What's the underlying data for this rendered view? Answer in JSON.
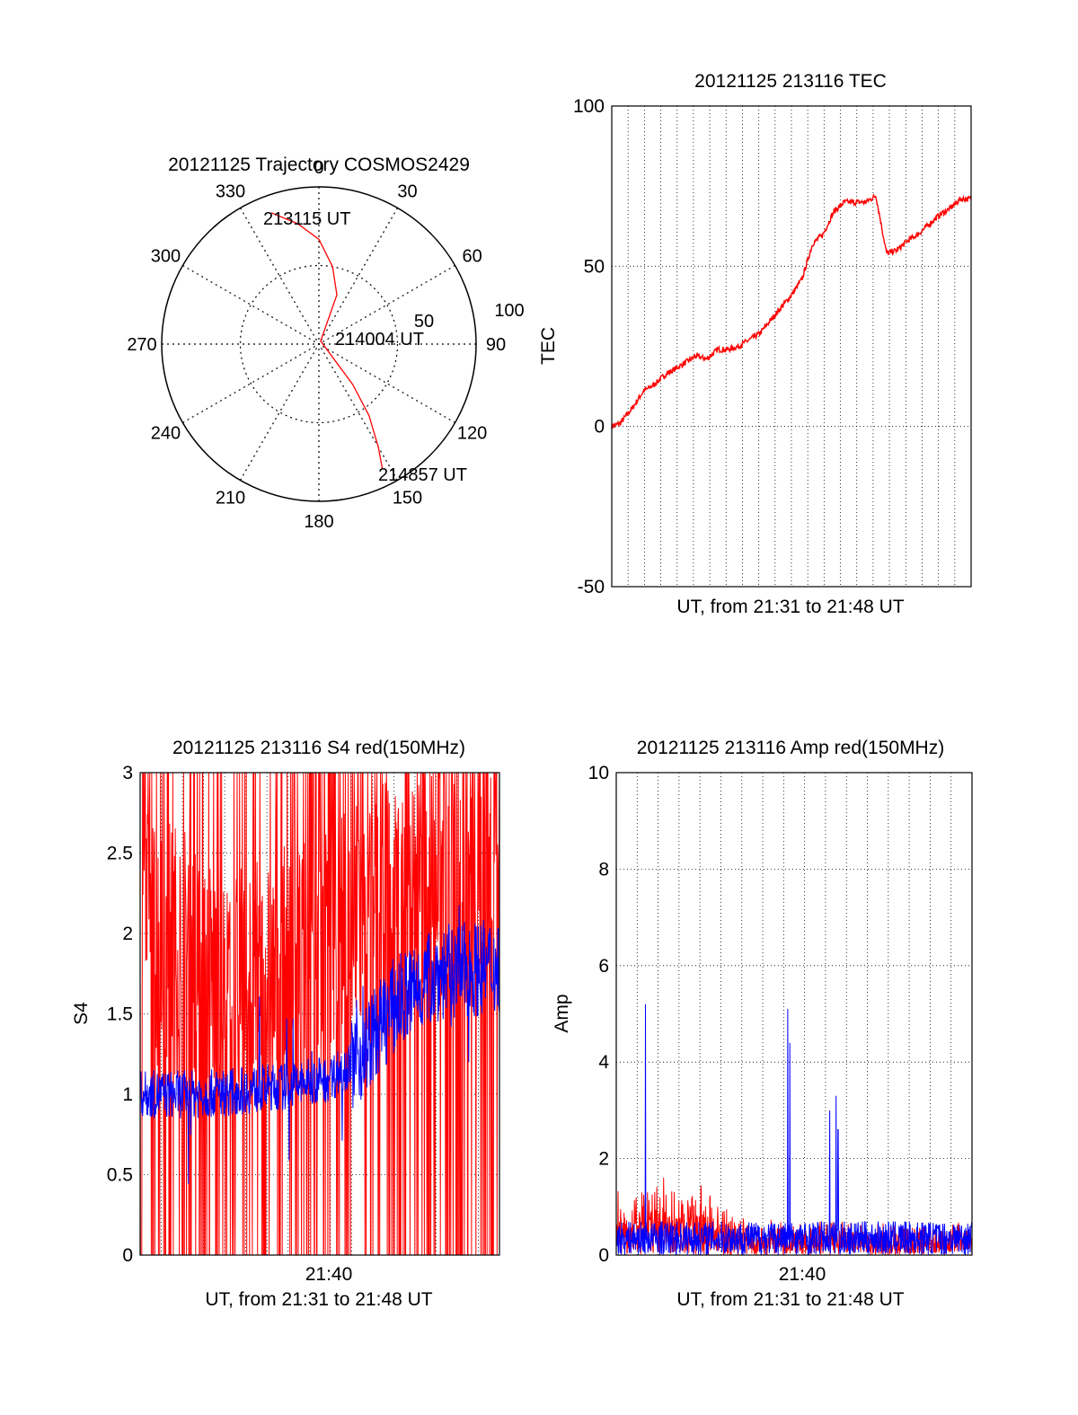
{
  "colors": {
    "red": "#ff0000",
    "blue": "#0000ff",
    "grid": "#000000"
  },
  "chart_data": [
    {
      "type": "polar",
      "title": "20121125 Trajectory COSMOS2429",
      "angle_labels": [
        "0",
        "30",
        "60",
        "90",
        "120",
        "150",
        "180",
        "210",
        "240",
        "270",
        "300",
        "330"
      ],
      "radius_labels": [
        "50",
        "100"
      ],
      "trajectory": {
        "azimuth_deg": [
          340,
          350,
          0,
          10,
          20,
          30,
          140,
          145,
          150,
          153
        ],
        "elevation_deg": [
          10,
          20,
          30,
          45,
          60,
          88,
          60,
          40,
          22,
          10
        ]
      },
      "annotations": [
        "213115 UT",
        "214004 UT",
        "214857 UT"
      ],
      "series": [
        {
          "color": "red"
        }
      ]
    },
    {
      "type": "line",
      "title": "20121125 213116 TEC",
      "xlabel": "UT, from 21:31 to 21:48 UT",
      "ylabel": "TEC",
      "ylim": [
        -50,
        100
      ],
      "yticks": [
        "-50",
        "0",
        "50",
        "100"
      ],
      "grid": true,
      "x_minutes": [
        0,
        0.4,
        1.0,
        1.5,
        2.0,
        2.5,
        3.0,
        3.5,
        4.0,
        4.5,
        5.0,
        5.5,
        6.0,
        6.5,
        7.0,
        7.5,
        8.0,
        8.5,
        9.0,
        9.5,
        10.0,
        10.5,
        11.0,
        11.5,
        12.0,
        12.5,
        13.0,
        13.5,
        14.0,
        14.5,
        15.0,
        15.5,
        16.0,
        16.5,
        17.0
      ],
      "values": [
        0,
        1,
        6,
        11,
        13,
        16,
        18,
        20,
        22,
        21,
        24,
        24,
        25,
        27,
        29,
        33,
        37,
        41,
        46,
        57,
        60,
        67,
        70,
        70,
        70,
        72,
        54,
        55,
        58,
        60,
        63,
        66,
        68,
        71,
        71
      ],
      "series": [
        {
          "color": "red"
        }
      ]
    },
    {
      "type": "line",
      "title": "20121125 213116 S4 red(150MHz)",
      "xlabel": "UT, from 21:31 to 21:48 UT",
      "ylabel": "S4",
      "ylim": [
        0,
        3
      ],
      "yticks": [
        "0",
        "0.5",
        "1",
        "1.5",
        "2",
        "2.5",
        "3"
      ],
      "xticks": [
        "21:40"
      ],
      "grid": true,
      "series": [
        {
          "color": "red",
          "note": "high-variance noise",
          "level_by_minute": [
            [
              0,
              2.0
            ],
            [
              2,
              1.9
            ],
            [
              4,
              1.6
            ],
            [
              8,
              1.8
            ],
            [
              12,
              2.2
            ],
            [
              17,
              2.4
            ]
          ]
        },
        {
          "color": "blue",
          "level_by_minute": [
            [
              0,
              1.0
            ],
            [
              3,
              1.0
            ],
            [
              7,
              1.05
            ],
            [
              9,
              1.1
            ],
            [
              10.5,
              1.25
            ],
            [
              12,
              1.55
            ],
            [
              14,
              1.75
            ],
            [
              17,
              1.8
            ]
          ]
        }
      ]
    },
    {
      "type": "line",
      "title": "20121125 213116 Amp red(150MHz)",
      "xlabel": "UT, from 21:31 to 21:48 UT",
      "ylabel": "Amp",
      "ylim": [
        0,
        10
      ],
      "yticks": [
        "0",
        "2",
        "4",
        "6",
        "8",
        "10"
      ],
      "xticks": [
        "21:40"
      ],
      "grid": true,
      "series": [
        {
          "color": "red",
          "level_by_minute": [
            [
              0,
              1.0
            ],
            [
              2,
              1.1
            ],
            [
              4,
              1.0
            ],
            [
              6,
              0.6
            ],
            [
              8,
              0.5
            ],
            [
              17,
              0.5
            ]
          ]
        },
        {
          "color": "blue",
          "baseline": 0.5,
          "spikes": [
            {
              "x_minute": 1.4,
              "value": 5.2
            },
            {
              "x_minute": 8.2,
              "value": 5.1
            },
            {
              "x_minute": 8.3,
              "value": 4.4
            },
            {
              "x_minute": 10.2,
              "value": 3.0
            },
            {
              "x_minute": 10.5,
              "value": 3.3
            },
            {
              "x_minute": 10.6,
              "value": 2.6
            }
          ]
        }
      ]
    }
  ]
}
